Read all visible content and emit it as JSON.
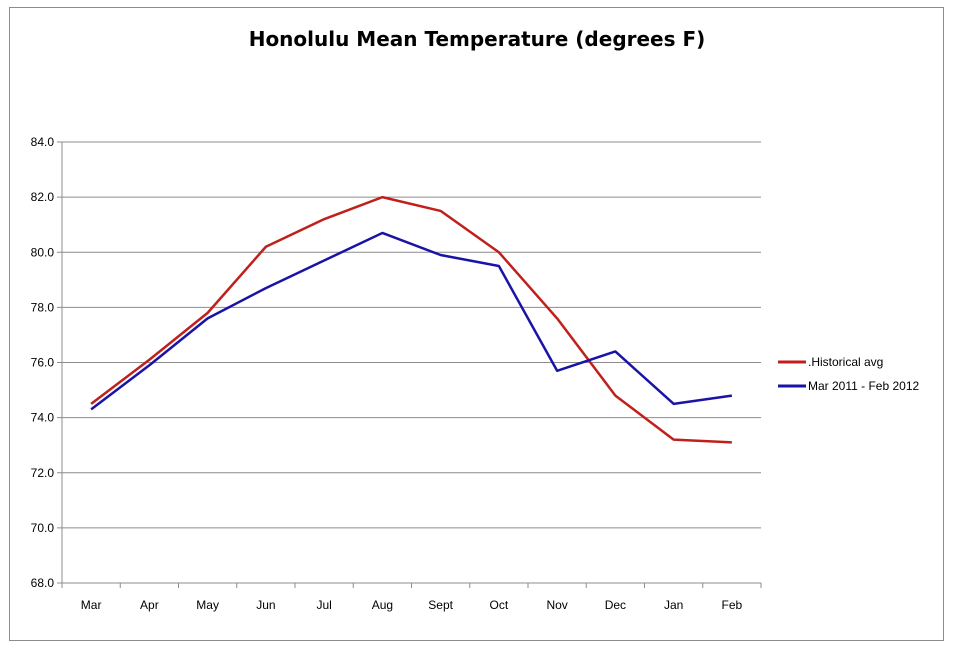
{
  "chart_data": {
    "type": "line",
    "title": "Honolulu Mean Temperature (degrees F)",
    "xlabel": "",
    "ylabel": "",
    "categories": [
      "Mar",
      "Apr",
      "May",
      "Jun",
      "Jul",
      "Aug",
      "Sept",
      "Oct",
      "Nov",
      "Dec",
      "Jan",
      "Feb"
    ],
    "ylim": [
      68.0,
      84.0
    ],
    "yticks": [
      "68.0",
      "70.0",
      "72.0",
      "74.0",
      "76.0",
      "78.0",
      "80.0",
      "82.0",
      "84.0"
    ],
    "grid": true,
    "legend_position": "right",
    "series": [
      {
        "name": ".Historical avg",
        "color": "#c0201c",
        "values": [
          74.5,
          76.1,
          77.8,
          80.2,
          81.2,
          82.0,
          81.5,
          80.0,
          77.6,
          74.8,
          73.2,
          73.1
        ]
      },
      {
        "name": "Mar 2011 - Feb 2012",
        "color": "#1a13a6",
        "values": [
          74.3,
          75.9,
          77.6,
          78.7,
          79.7,
          80.7,
          79.9,
          79.5,
          75.7,
          76.4,
          74.5,
          74.8
        ]
      }
    ]
  }
}
